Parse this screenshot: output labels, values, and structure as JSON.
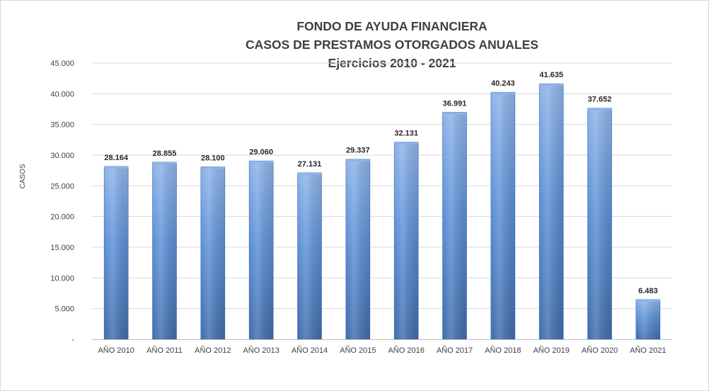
{
  "chart_data": {
    "type": "bar",
    "title": [
      "FONDO DE AYUDA FINANCIERA",
      "CASOS DE PRESTAMOS  OTORGADOS  ANUALES",
      "Ejercicios  2010 - 2021"
    ],
    "ylabel": "CASOS",
    "xlabel": "",
    "categories": [
      "AÑO 2010",
      "AÑO 2011",
      "AÑO 2012",
      "AÑO 2013",
      "AÑO 2014",
      "AÑO 2015",
      "AÑO 2016",
      "AÑO 2017",
      "AÑO 2018",
      "AÑO 2019",
      "AÑO 2020",
      "AÑO 2021"
    ],
    "values": [
      28164,
      28855,
      28100,
      29060,
      27131,
      29337,
      32131,
      36991,
      40243,
      41635,
      37652,
      6483
    ],
    "data_labels": [
      "28.164",
      "28.855",
      "28.100",
      "29.060",
      "27.131",
      "29.337",
      "32.131",
      "36.991",
      "40.243",
      "41.635",
      "37.652",
      "6.483"
    ],
    "ylim": [
      0,
      45000
    ],
    "yticks": [
      0,
      5000,
      10000,
      15000,
      20000,
      25000,
      30000,
      35000,
      40000,
      45000
    ],
    "ytick_labels": [
      "-",
      "5.000",
      "10.000",
      "15.000",
      "20.000",
      "25.000",
      "30.000",
      "35.000",
      "40.000",
      "45.000"
    ],
    "grid": true,
    "legend": "none",
    "colors": {
      "bar_light": "#8db3e8",
      "bar_mid": "#5b8fd6",
      "bar_dark": "#3f6cab",
      "gridline": "#d9d9d9",
      "axis": "#bfbfbf"
    }
  }
}
